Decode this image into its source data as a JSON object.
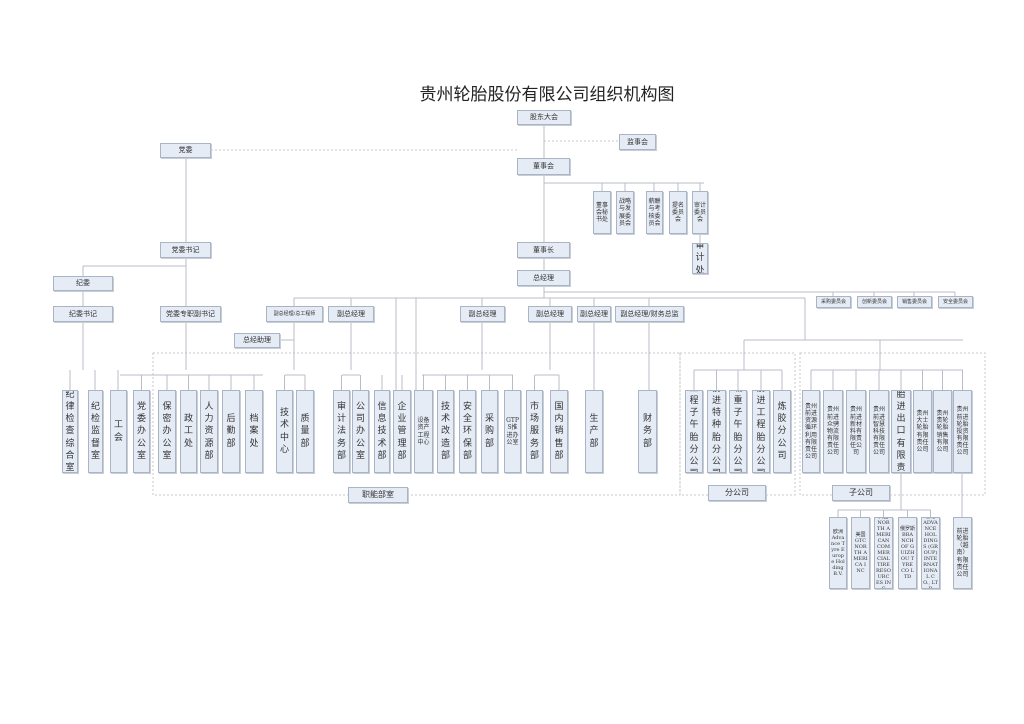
{
  "title": "贵州轮胎股份有限公司组织机构图",
  "colors": {
    "box_fill": "#e6ecf6",
    "box_border": "#aab4c4",
    "line": "#b8bec8"
  },
  "nodes": {
    "gudong": "股东大会",
    "jianshi": "监事会",
    "dangwei": "党委",
    "dongshihui": "董事会",
    "mishuchu": "董事会秘书处",
    "zhanlue": "战略与发展委员会",
    "xinchou": "薪酬与考核委员会",
    "timing": "提名委员会",
    "shenji_wyh": "审计委员会",
    "shenjichu": "审计处",
    "dangwei_shuji": "党委书记",
    "dongshizhang": "董事长",
    "zongjingli": "总经理",
    "jiwei": "纪委",
    "jiwei_shuji": "纪委书记",
    "fushuji": "党委专职副书记",
    "fz_zgcs": "副总经理/总工程师",
    "fz1": "副总经理",
    "fz2": "副总经理",
    "fz3": "副总经理",
    "fz4": "副总经理",
    "fz_cwzj": "副总经理/财务总监",
    "zjzl": "总经助理",
    "wy_caigou": "采购委员会",
    "wy_chuangxin": "创新委员会",
    "wy_xiaoshou": "销售委员会",
    "wy_anquan": "安全委员会",
    "group_zhineng": "职能部室",
    "group_fengongsi": "分公司",
    "group_zigongsi": "子公司"
  },
  "departments": [
    "纪律检查综合室",
    "纪检监督室",
    "工会",
    "党委办公室",
    "保密办公室",
    "政工处",
    "人力资源部",
    "后勤部",
    "档案处",
    "技术中心",
    "质量部",
    "审计法务部",
    "公司办公室",
    "信息技术部",
    "企业管理部",
    "设备资产工程中心",
    "技术改造部",
    "安全环保部",
    "采购部",
    "GTPS推进办公室",
    "市场服务部",
    "国内销售部",
    "生产部",
    "财务部"
  ],
  "branches": [
    "工程子午胎分公司",
    "前进特种胎分公司",
    "载重子午胎分公司",
    "前进工程胎分公司",
    "炼胶分公司"
  ],
  "subsidiaries": [
    "贵州前进资源循环利用有限责任公司",
    "贵州前进众骋物流有限责任公司",
    "贵州前进新材料有限责任公司",
    "贵州前进智慧科技有限责任公司",
    "贵州轮胎进出口有限责任公司",
    "贵州大士轮胎有限责任公司",
    "贵州贵轮轮胎销售有限公司",
    "贵州前进轮胎投资有限责任公司"
  ],
  "overseas": [
    "欧洲 Advance Tyre Europe Holding B.V.",
    "美国 GTC NORTH AMERICA INC",
    "美国 NORTH AMERICAN COMMERCIAL TIRE RESOURCES INC",
    "俄罗斯 BRANCH OF GUIZHOU TYRE CO LTD",
    "香港 ADVANCE HOLDINGS (GROUP) INTERNATIONAL CO., LTD",
    "前进轮胎（越南）有限责任公司"
  ]
}
